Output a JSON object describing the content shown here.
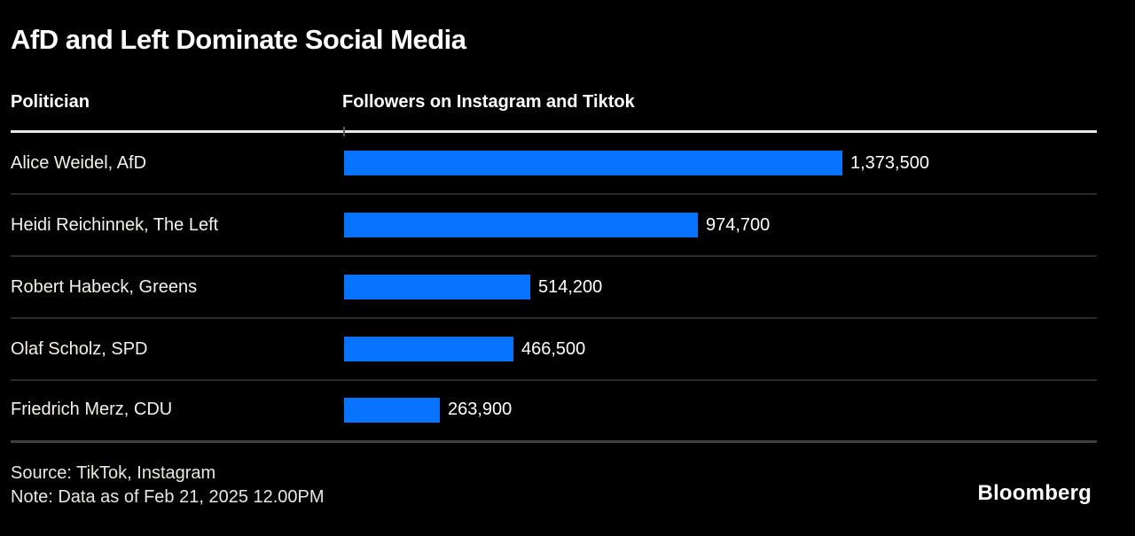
{
  "title": "AfD and Left Dominate Social Media",
  "table_header": {
    "politician": "Politician",
    "followers": "Followers on Instagram and Tiktok"
  },
  "chart_data": {
    "type": "bar",
    "orientation": "horizontal",
    "title": "AfD and Left Dominate Social Media",
    "xlabel": "Followers on Instagram and Tiktok",
    "ylabel": "Politician",
    "categories": [
      "Alice Weidel, AfD",
      "Heidi Reichinnek, The Left",
      "Robert Habeck, Greens",
      "Olaf Scholz, SPD",
      "Friedrich Merz, CDU"
    ],
    "values": [
      1373500,
      974700,
      514200,
      466500,
      263900
    ],
    "value_labels": [
      "1,373,500",
      "974,700",
      "514,200",
      "466,500",
      "263,900"
    ],
    "xlim": [
      0,
      1373500
    ],
    "grid": "off",
    "legend": "none",
    "bar_color": "#0873fc"
  },
  "footer": {
    "source": "Source: TikTok, Instagram",
    "note": "Note: Data as of Feb 21, 2025 12.00PM",
    "brand": "Bloomberg"
  },
  "colors": {
    "background": "#000000",
    "bar": "#0873fc",
    "title_text": "#ffffff",
    "header_text": "#ffffff",
    "label_text": "#f3f1ea",
    "value_text": "#ffffff",
    "header_rule": "#e8e8e8",
    "row_divider": "#2a2a2a",
    "bottom_rule": "#3e3e3e",
    "footer_text": "#e9e7e0"
  }
}
